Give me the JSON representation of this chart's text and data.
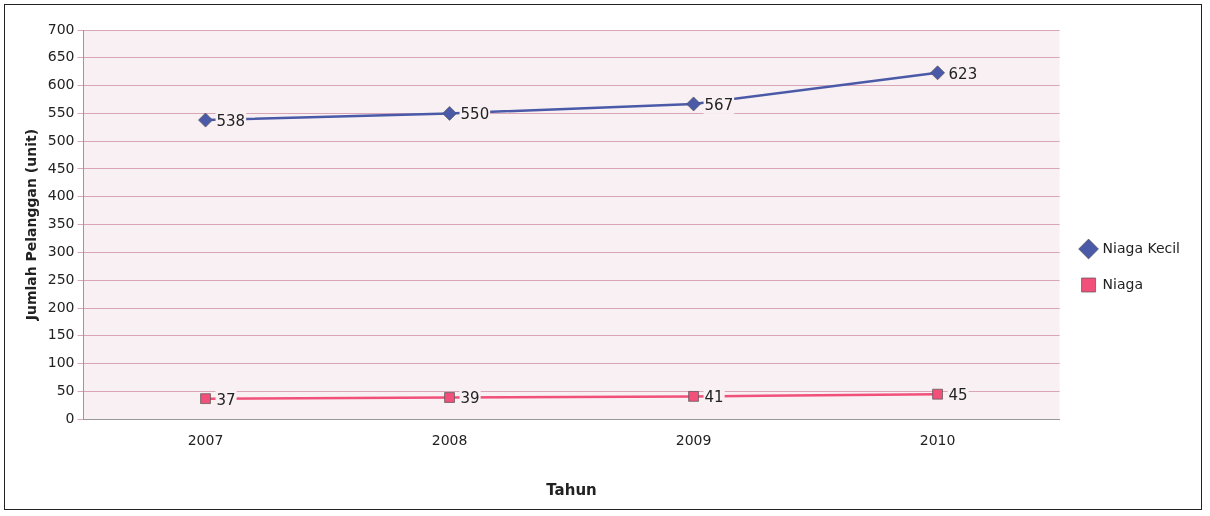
{
  "chart_data": {
    "type": "line",
    "xlabel": "Tahun",
    "ylabel": "Jumlah Pelanggan (unit)",
    "categories": [
      "2007",
      "2008",
      "2009",
      "2010"
    ],
    "series": [
      {
        "name": "Niaga Kecil",
        "color": "#4a5aa8",
        "marker": "diamond",
        "values": [
          538,
          550,
          567,
          623
        ]
      },
      {
        "name": "Niaga",
        "color": "#f0507a",
        "marker": "square",
        "values": [
          37,
          39,
          41,
          45
        ]
      }
    ],
    "ylim": [
      0,
      700
    ],
    "yticks": [
      0,
      50,
      100,
      150,
      200,
      250,
      300,
      350,
      400,
      450,
      500,
      550,
      600,
      650,
      700
    ],
    "grid": "y",
    "legend": "right",
    "data_labels": true
  }
}
